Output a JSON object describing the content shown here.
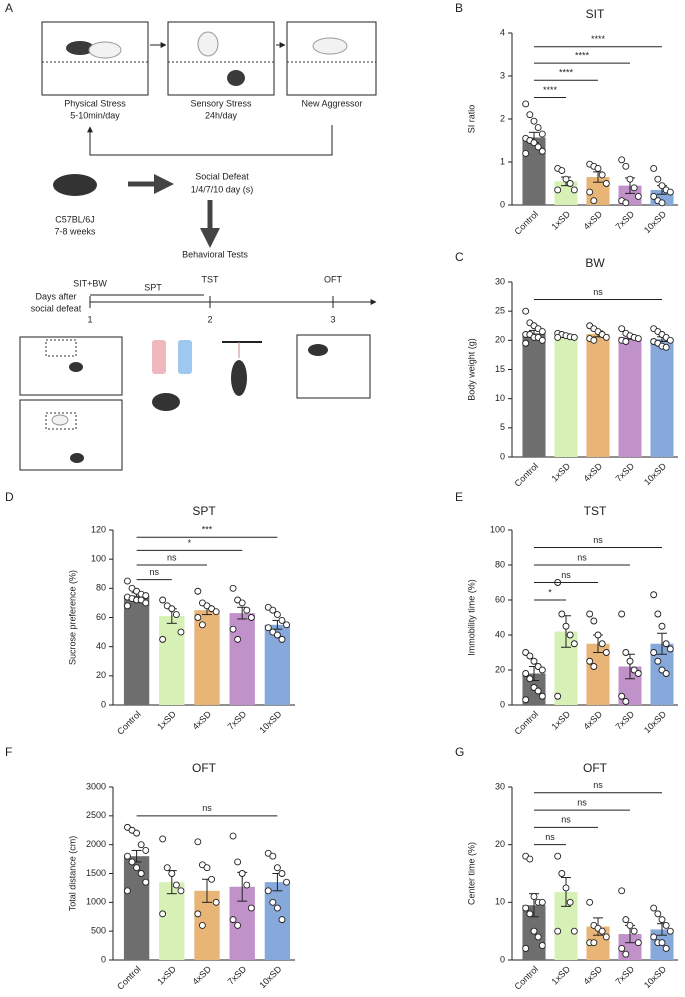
{
  "panel_a": {
    "letter": "A",
    "box_labels": [
      [
        "Physical Stress",
        "5-10min/day"
      ],
      [
        "Sensory Stress",
        "24h/day"
      ],
      [
        "New Aggressor"
      ]
    ],
    "strain": [
      "C57BL/6J",
      "7-8 weeks"
    ],
    "defeat": [
      "Social Defeat",
      "1/4/7/10 day (s)"
    ],
    "tests": "Behavioral Tests",
    "timeline": {
      "sit": "SIT+BW",
      "spt": "SPT",
      "tst": "TST",
      "oft": "OFT",
      "axis_label": [
        "Days after",
        "social defeat"
      ],
      "days": [
        "1",
        "2",
        "3"
      ]
    }
  },
  "chart_data": [
    {
      "panel": "B",
      "type": "bar",
      "title": "SIT",
      "ylabel": "SI ratio",
      "categories": [
        "Control",
        "1xSD",
        "4xSD",
        "7xSD",
        "10xSD"
      ],
      "colors": [
        "#6e6e6e",
        "#d6f0b6",
        "#e8b577",
        "#c192c9",
        "#87a8db"
      ],
      "values": [
        1.57,
        0.55,
        0.65,
        0.45,
        0.35
      ],
      "errors": [
        0.12,
        0.1,
        0.12,
        0.18,
        0.1
      ],
      "points": [
        [
          2.35,
          2.1,
          1.95,
          1.8,
          1.65,
          1.55,
          1.5,
          1.45,
          1.35,
          1.25,
          1.2
        ],
        [
          0.85,
          0.8,
          0.6,
          0.5,
          0.35,
          0.35
        ],
        [
          0.95,
          0.9,
          0.85,
          0.7,
          0.5,
          0.3,
          0.1
        ],
        [
          1.05,
          0.9,
          0.6,
          0.4,
          0.2,
          0.1,
          0.05
        ],
        [
          0.85,
          0.6,
          0.45,
          0.35,
          0.3,
          0.2,
          0.1,
          0.05
        ]
      ],
      "ylim": [
        0,
        4
      ],
      "yticks": [
        0,
        1,
        2,
        3,
        4
      ],
      "significance": [
        {
          "from": "Control",
          "to": "1xSD",
          "y": 2.5,
          "label": "****"
        },
        {
          "from": "Control",
          "to": "4xSD",
          "y": 2.9,
          "label": "****"
        },
        {
          "from": "Control",
          "to": "7xSD",
          "y": 3.3,
          "label": "****"
        },
        {
          "from": "Control",
          "to": "10xSD",
          "y": 3.68,
          "label": "****"
        }
      ]
    },
    {
      "panel": "C",
      "type": "bar",
      "title": "BW",
      "ylabel": "Body weight (g)",
      "categories": [
        "Control",
        "1xSD",
        "4xSD",
        "7xSD",
        "10xSD"
      ],
      "colors": [
        "#6e6e6e",
        "#d6f0b6",
        "#e8b577",
        "#c192c9",
        "#87a8db"
      ],
      "values": [
        21.2,
        20.8,
        21.1,
        20.6,
        20.2
      ],
      "errors": [
        0.5,
        0.3,
        0.5,
        0.4,
        0.4
      ],
      "points": [
        [
          25,
          23,
          22.5,
          22,
          21.5,
          21,
          21,
          20.5,
          20.5,
          20,
          19.5
        ],
        [
          21.2,
          21,
          20.8,
          20.6,
          20.5,
          20.5
        ],
        [
          22.5,
          22,
          21.5,
          21,
          20.5,
          20.3,
          20
        ],
        [
          22,
          21.2,
          20.8,
          20.5,
          20.3,
          20,
          19.8
        ],
        [
          22,
          21.5,
          21,
          20.5,
          20,
          19.8,
          19.5,
          19,
          18.8
        ]
      ],
      "ylim": [
        0,
        30
      ],
      "yticks": [
        0,
        5,
        10,
        15,
        20,
        25,
        30
      ],
      "significance": [
        {
          "from": "Control",
          "to": "10xSD",
          "y": 27,
          "label": "ns"
        }
      ]
    },
    {
      "panel": "D",
      "type": "bar",
      "title": "SPT",
      "ylabel": "Sucrose preference (%)",
      "categories": [
        "Control",
        "1xSD",
        "4xSD",
        "7xSD",
        "10xSD"
      ],
      "colors": [
        "#6e6e6e",
        "#d6f0b6",
        "#e8b577",
        "#c192c9",
        "#87a8db"
      ],
      "values": [
        75,
        61,
        65,
        63,
        55
      ],
      "errors": [
        2,
        5,
        3,
        4,
        3
      ],
      "points": [
        [
          85,
          80,
          78,
          76,
          75,
          74,
          73,
          72,
          72,
          70,
          68
        ],
        [
          72,
          68,
          66,
          62,
          50,
          45
        ],
        [
          78,
          70,
          68,
          66,
          64,
          60,
          55
        ],
        [
          80,
          72,
          70,
          65,
          60,
          52,
          45
        ],
        [
          67,
          65,
          62,
          58,
          55,
          53,
          50,
          48,
          45
        ]
      ],
      "ylim": [
        0,
        120
      ],
      "yticks": [
        0,
        20,
        40,
        60,
        80,
        100,
        120
      ],
      "significance": [
        {
          "from": "Control",
          "to": "1xSD",
          "y": 86,
          "label": "ns"
        },
        {
          "from": "Control",
          "to": "4xSD",
          "y": 96,
          "label": "ns"
        },
        {
          "from": "Control",
          "to": "7xSD",
          "y": 106,
          "label": "*"
        },
        {
          "from": "Control",
          "to": "10xSD",
          "y": 115,
          "label": "***"
        }
      ]
    },
    {
      "panel": "E",
      "type": "bar",
      "title": "TST",
      "ylabel": "Immobility time (%)",
      "categories": [
        "Control",
        "1xSD",
        "4xSD",
        "7xSD",
        "10xSD"
      ],
      "colors": [
        "#6e6e6e",
        "#d6f0b6",
        "#e8b577",
        "#c192c9",
        "#87a8db"
      ],
      "values": [
        18,
        42,
        35,
        22,
        35
      ],
      "errors": [
        4,
        9,
        5,
        7,
        6
      ],
      "points": [
        [
          30,
          28,
          25,
          22,
          20,
          18,
          15,
          10,
          8,
          5,
          3
        ],
        [
          70,
          52,
          45,
          40,
          35,
          5
        ],
        [
          52,
          48,
          40,
          35,
          30,
          25,
          22
        ],
        [
          52,
          30,
          25,
          20,
          18,
          5,
          2
        ],
        [
          63,
          52,
          45,
          35,
          32,
          30,
          25,
          20,
          18
        ]
      ],
      "ylim": [
        0,
        100
      ],
      "yticks": [
        0,
        20,
        40,
        60,
        80,
        100
      ],
      "significance": [
        {
          "from": "Control",
          "to": "1xSD",
          "y": 60,
          "label": "*"
        },
        {
          "from": "Control",
          "to": "4xSD",
          "y": 70,
          "label": "ns"
        },
        {
          "from": "Control",
          "to": "7xSD",
          "y": 80,
          "label": "ns"
        },
        {
          "from": "Control",
          "to": "10xSD",
          "y": 90,
          "label": "ns"
        }
      ]
    },
    {
      "panel": "F",
      "type": "bar",
      "title": "OFT",
      "ylabel": "Total distance (cm)",
      "categories": [
        "Control",
        "1xSD",
        "4xSD",
        "7xSD",
        "10xSD"
      ],
      "colors": [
        "#6e6e6e",
        "#d6f0b6",
        "#e8b577",
        "#c192c9",
        "#87a8db"
      ],
      "values": [
        1800,
        1350,
        1200,
        1270,
        1350
      ],
      "errors": [
        100,
        200,
        200,
        250,
        150
      ],
      "points": [
        [
          2300,
          2250,
          2200,
          2000,
          1900,
          1800,
          1700,
          1600,
          1500,
          1350,
          1200
        ],
        [
          2100,
          1600,
          1500,
          1300,
          1200,
          800
        ],
        [
          2050,
          1650,
          1600,
          1400,
          1000,
          800,
          600
        ],
        [
          2150,
          1700,
          1500,
          1300,
          900,
          700,
          600
        ],
        [
          1850,
          1800,
          1600,
          1500,
          1350,
          1200,
          1000,
          900,
          700
        ]
      ],
      "ylim": [
        0,
        3000
      ],
      "yticks": [
        0,
        500,
        1000,
        1500,
        2000,
        2500,
        3000
      ],
      "significance": [
        {
          "from": "Control",
          "to": "10xSD",
          "y": 2500,
          "label": "ns"
        }
      ]
    },
    {
      "panel": "G",
      "type": "bar",
      "title": "OFT",
      "ylabel": "Center time (%)",
      "categories": [
        "Control",
        "1xSD",
        "4xSD",
        "7xSD",
        "10xSD"
      ],
      "colors": [
        "#6e6e6e",
        "#d6f0b6",
        "#e8b577",
        "#c192c9",
        "#87a8db"
      ],
      "values": [
        9.5,
        11.8,
        5.8,
        4.5,
        5.3
      ],
      "errors": [
        2,
        2.5,
        1.5,
        1.5,
        1
      ],
      "points": [
        [
          18,
          17.5,
          11,
          10,
          10,
          9,
          8,
          5,
          4,
          2.5,
          2
        ],
        [
          18,
          15,
          12.5,
          10,
          5,
          5
        ],
        [
          10,
          6,
          5.5,
          5,
          4,
          3,
          3
        ],
        [
          12,
          7,
          6,
          5,
          3,
          2,
          1
        ],
        [
          9,
          8,
          7,
          6,
          5,
          4,
          3,
          3,
          2
        ]
      ],
      "ylim": [
        0,
        30
      ],
      "yticks": [
        0,
        10,
        20,
        30
      ],
      "significance": [
        {
          "from": "Control",
          "to": "1xSD",
          "y": 20,
          "label": "ns"
        },
        {
          "from": "Control",
          "to": "4xSD",
          "y": 23,
          "label": "ns"
        },
        {
          "from": "Control",
          "to": "7xSD",
          "y": 26,
          "label": "ns"
        },
        {
          "from": "Control",
          "to": "10xSD",
          "y": 29,
          "label": "ns"
        }
      ]
    }
  ]
}
